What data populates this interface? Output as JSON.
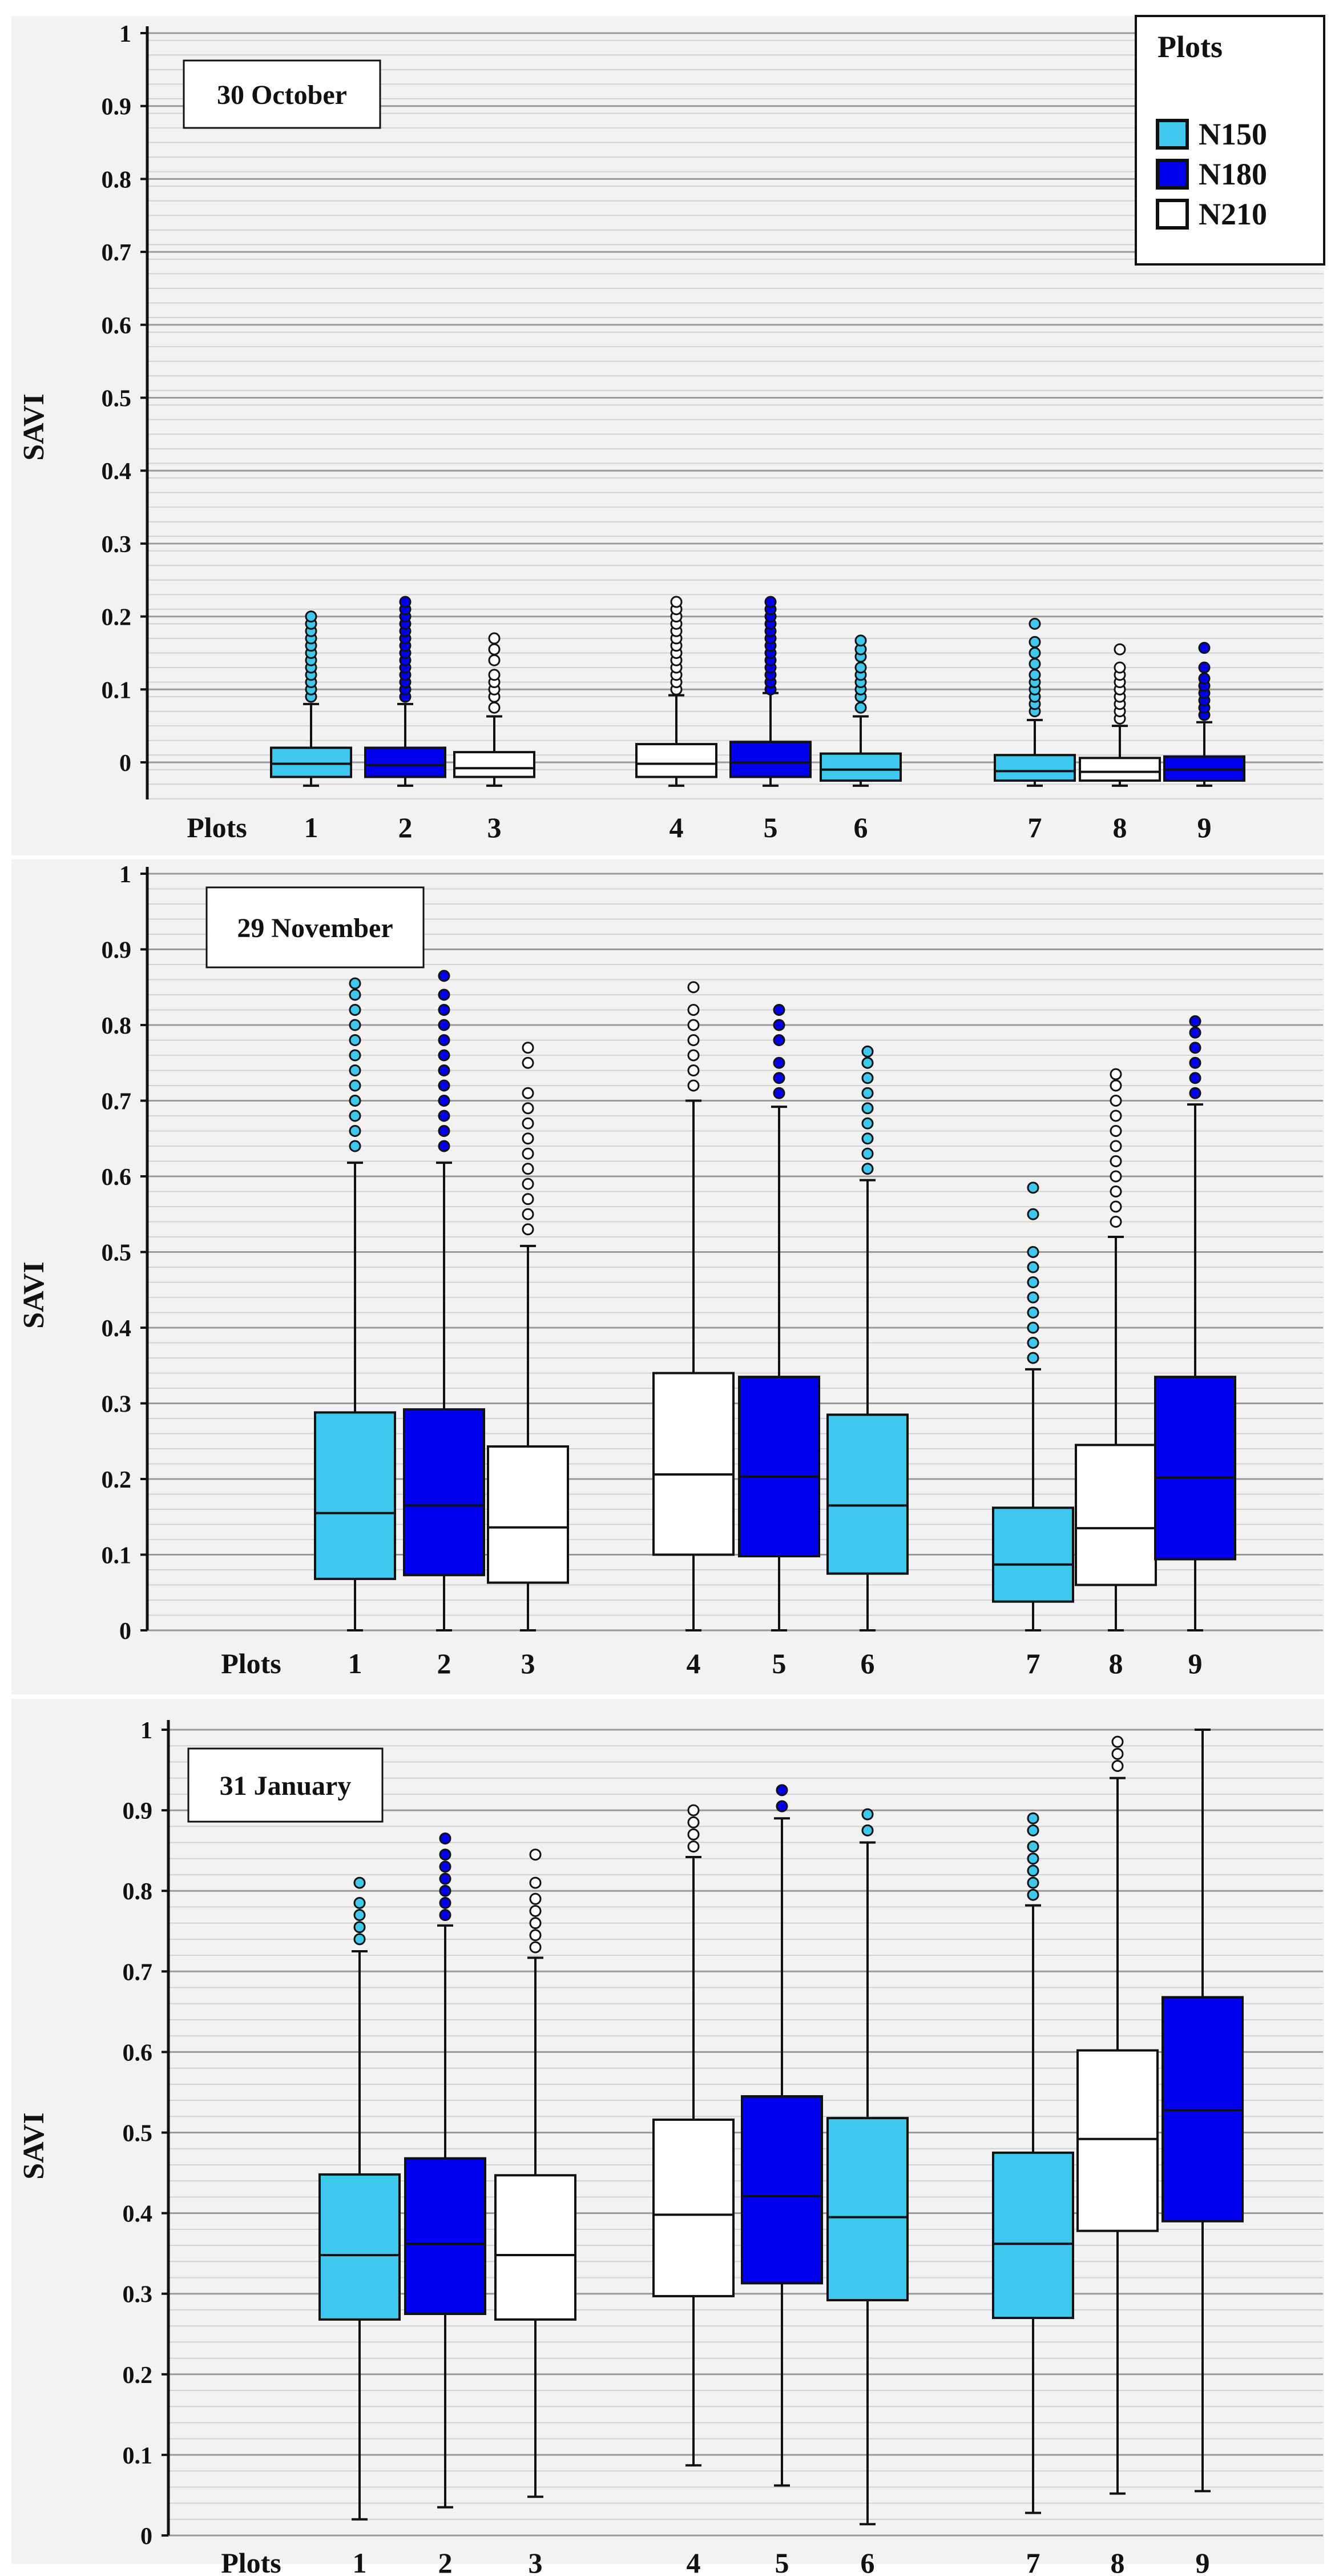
{
  "colors": {
    "N150": "#3EC8EE",
    "N180": "#0000EE",
    "N210": "#FFFFFF",
    "panel_bg": "#F2F2F2",
    "grid_major": "#9A9A9A",
    "grid_minor": "#D2D2D2",
    "outline": "#111111"
  },
  "legend": {
    "title": "Plots",
    "items": [
      {
        "label": "N150",
        "color": "#3EC8EE"
      },
      {
        "label": "N180",
        "color": "#0000EE"
      },
      {
        "label": "N210",
        "color": "#FFFFFF"
      }
    ]
  },
  "chart_data": [
    {
      "type": "boxplot",
      "title": "30 October",
      "ylabel": "SAVI",
      "xlabel": "Plots",
      "ylim": [
        -0.05,
        1.0
      ],
      "yticks": [
        0,
        0.1,
        0.2,
        0.3,
        0.4,
        0.5,
        0.6,
        0.7,
        0.8,
        0.9,
        1
      ],
      "ytick_labels": [
        "0",
        "0.1",
        "0.2",
        "0.3",
        "0.4",
        "0.5",
        "0.6",
        "0.7",
        "0.8",
        "0.9",
        "1"
      ],
      "categories": [
        "1",
        "2",
        "3",
        "4",
        "5",
        "6",
        "7",
        "8",
        "9"
      ],
      "groups": [
        "N150",
        "N180",
        "N210",
        "N210",
        "N180",
        "N150",
        "N150",
        "N210",
        "N180"
      ],
      "boxes": [
        {
          "lower_whisker": -0.032,
          "q1": -0.02,
          "median": -0.002,
          "q3": 0.02,
          "upper_whisker": 0.08,
          "outliers": [
            0.09,
            0.1,
            0.11,
            0.12,
            0.13,
            0.14,
            0.15,
            0.16,
            0.17,
            0.18,
            0.19,
            0.2
          ]
        },
        {
          "lower_whisker": -0.032,
          "q1": -0.02,
          "median": -0.004,
          "q3": 0.02,
          "upper_whisker": 0.08,
          "outliers": [
            0.09,
            0.1,
            0.11,
            0.12,
            0.13,
            0.14,
            0.15,
            0.16,
            0.17,
            0.18,
            0.19,
            0.2,
            0.21,
            0.22
          ]
        },
        {
          "lower_whisker": -0.032,
          "q1": -0.02,
          "median": -0.008,
          "q3": 0.014,
          "upper_whisker": 0.063,
          "outliers": [
            0.075,
            0.09,
            0.1,
            0.11,
            0.12,
            0.14,
            0.155,
            0.17
          ]
        },
        {
          "lower_whisker": -0.032,
          "q1": -0.02,
          "median": -0.002,
          "q3": 0.025,
          "upper_whisker": 0.092,
          "outliers": [
            0.1,
            0.11,
            0.12,
            0.13,
            0.14,
            0.15,
            0.16,
            0.17,
            0.18,
            0.19,
            0.2,
            0.21,
            0.22
          ]
        },
        {
          "lower_whisker": -0.032,
          "q1": -0.02,
          "median": 0.0,
          "q3": 0.028,
          "upper_whisker": 0.095,
          "outliers": [
            0.1,
            0.11,
            0.12,
            0.13,
            0.14,
            0.15,
            0.16,
            0.17,
            0.18,
            0.19,
            0.2,
            0.21,
            0.22
          ]
        },
        {
          "lower_whisker": -0.032,
          "q1": -0.025,
          "median": -0.01,
          "q3": 0.012,
          "upper_whisker": 0.063,
          "outliers": [
            0.075,
            0.09,
            0.1,
            0.11,
            0.12,
            0.13,
            0.145,
            0.155,
            0.167
          ]
        },
        {
          "lower_whisker": -0.032,
          "q1": -0.025,
          "median": -0.012,
          "q3": 0.01,
          "upper_whisker": 0.058,
          "outliers": [
            0.07,
            0.08,
            0.09,
            0.1,
            0.11,
            0.12,
            0.135,
            0.15,
            0.165,
            0.19
          ]
        },
        {
          "lower_whisker": -0.032,
          "q1": -0.025,
          "median": -0.013,
          "q3": 0.006,
          "upper_whisker": 0.05,
          "outliers": [
            0.06,
            0.07,
            0.08,
            0.09,
            0.1,
            0.11,
            0.12,
            0.13,
            0.155
          ]
        },
        {
          "lower_whisker": -0.032,
          "q1": -0.025,
          "median": -0.01,
          "q3": 0.008,
          "upper_whisker": 0.055,
          "outliers": [
            0.065,
            0.075,
            0.085,
            0.095,
            0.105,
            0.115,
            0.13,
            0.157
          ]
        }
      ]
    },
    {
      "type": "boxplot",
      "title": "29 November",
      "ylabel": "SAVI",
      "xlabel": "Plots",
      "ylim": [
        0,
        1.0
      ],
      "yticks": [
        0,
        0.1,
        0.2,
        0.3,
        0.4,
        0.5,
        0.6,
        0.7,
        0.8,
        0.9,
        1
      ],
      "ytick_labels": [
        "0",
        "0.1",
        "0.2",
        "0.3",
        "0.4",
        "0.5",
        "0.6",
        "0.7",
        "0.8",
        "0.9",
        "1"
      ],
      "categories": [
        "1",
        "2",
        "3",
        "4",
        "5",
        "6",
        "7",
        "8",
        "9"
      ],
      "groups": [
        "N150",
        "N180",
        "N210",
        "N210",
        "N180",
        "N150",
        "N150",
        "N210",
        "N180"
      ],
      "boxes": [
        {
          "lower_whisker": 0.0,
          "q1": 0.068,
          "median": 0.155,
          "q3": 0.288,
          "upper_whisker": 0.618,
          "outliers": [
            0.64,
            0.66,
            0.68,
            0.7,
            0.72,
            0.74,
            0.76,
            0.78,
            0.8,
            0.82,
            0.84,
            0.855
          ]
        },
        {
          "lower_whisker": 0.0,
          "q1": 0.073,
          "median": 0.165,
          "q3": 0.292,
          "upper_whisker": 0.618,
          "outliers": [
            0.64,
            0.66,
            0.68,
            0.7,
            0.72,
            0.74,
            0.76,
            0.78,
            0.8,
            0.82,
            0.84,
            0.865
          ]
        },
        {
          "lower_whisker": 0.0,
          "q1": 0.063,
          "median": 0.136,
          "q3": 0.243,
          "upper_whisker": 0.508,
          "outliers": [
            0.53,
            0.55,
            0.57,
            0.59,
            0.61,
            0.63,
            0.65,
            0.67,
            0.69,
            0.71,
            0.75,
            0.77
          ]
        },
        {
          "lower_whisker": 0.0,
          "q1": 0.1,
          "median": 0.206,
          "q3": 0.34,
          "upper_whisker": 0.7,
          "outliers": [
            0.72,
            0.74,
            0.76,
            0.78,
            0.8,
            0.82,
            0.85
          ]
        },
        {
          "lower_whisker": 0.0,
          "q1": 0.098,
          "median": 0.203,
          "q3": 0.335,
          "upper_whisker": 0.692,
          "outliers": [
            0.71,
            0.73,
            0.75,
            0.78,
            0.8,
            0.82
          ]
        },
        {
          "lower_whisker": 0.0,
          "q1": 0.075,
          "median": 0.165,
          "q3": 0.285,
          "upper_whisker": 0.595,
          "outliers": [
            0.61,
            0.63,
            0.65,
            0.67,
            0.69,
            0.71,
            0.73,
            0.75,
            0.765
          ]
        },
        {
          "lower_whisker": 0.0,
          "q1": 0.038,
          "median": 0.087,
          "q3": 0.162,
          "upper_whisker": 0.345,
          "outliers": [
            0.36,
            0.38,
            0.4,
            0.42,
            0.44,
            0.46,
            0.48,
            0.5,
            0.55,
            0.585
          ]
        },
        {
          "lower_whisker": 0.0,
          "q1": 0.06,
          "median": 0.135,
          "q3": 0.245,
          "upper_whisker": 0.52,
          "outliers": [
            0.54,
            0.56,
            0.58,
            0.6,
            0.62,
            0.64,
            0.66,
            0.68,
            0.7,
            0.72,
            0.735
          ]
        },
        {
          "lower_whisker": 0.0,
          "q1": 0.094,
          "median": 0.202,
          "q3": 0.335,
          "upper_whisker": 0.695,
          "outliers": [
            0.71,
            0.73,
            0.75,
            0.77,
            0.79,
            0.805
          ]
        }
      ]
    },
    {
      "type": "boxplot",
      "title": "31 January",
      "ylabel": "SAVI",
      "xlabel": "Plots",
      "ylim": [
        0,
        1.0
      ],
      "yticks": [
        0,
        0.1,
        0.2,
        0.3,
        0.4,
        0.5,
        0.6,
        0.7,
        0.8,
        0.9,
        1
      ],
      "ytick_labels": [
        "0",
        "0.1",
        "0.2",
        "0.3",
        "0.4",
        "0.5",
        "0.6",
        "0.7",
        "0.8",
        "0.9",
        "1"
      ],
      "categories": [
        "1",
        "2",
        "3",
        "4",
        "5",
        "6",
        "7",
        "8",
        "9"
      ],
      "groups": [
        "N150",
        "N180",
        "N210",
        "N210",
        "N180",
        "N150",
        "N150",
        "N210",
        "N180"
      ],
      "boxes": [
        {
          "lower_whisker": 0.02,
          "q1": 0.268,
          "median": 0.348,
          "q3": 0.448,
          "upper_whisker": 0.725,
          "outliers": [
            0.74,
            0.755,
            0.77,
            0.785,
            0.81
          ]
        },
        {
          "lower_whisker": 0.035,
          "q1": 0.275,
          "median": 0.362,
          "q3": 0.468,
          "upper_whisker": 0.757,
          "outliers": [
            0.77,
            0.785,
            0.8,
            0.815,
            0.83,
            0.845,
            0.865
          ]
        },
        {
          "lower_whisker": 0.048,
          "q1": 0.268,
          "median": 0.348,
          "q3": 0.447,
          "upper_whisker": 0.717,
          "outliers": [
            0.73,
            0.745,
            0.76,
            0.775,
            0.79,
            0.81,
            0.845
          ]
        },
        {
          "lower_whisker": 0.087,
          "q1": 0.297,
          "median": 0.398,
          "q3": 0.516,
          "upper_whisker": 0.842,
          "outliers": [
            0.855,
            0.87,
            0.885,
            0.9
          ]
        },
        {
          "lower_whisker": 0.062,
          "q1": 0.313,
          "median": 0.421,
          "q3": 0.545,
          "upper_whisker": 0.89,
          "outliers": [
            0.905,
            0.925
          ]
        },
        {
          "lower_whisker": 0.014,
          "q1": 0.292,
          "median": 0.395,
          "q3": 0.518,
          "upper_whisker": 0.86,
          "outliers": [
            0.875,
            0.895
          ]
        },
        {
          "lower_whisker": 0.028,
          "q1": 0.27,
          "median": 0.362,
          "q3": 0.475,
          "upper_whisker": 0.782,
          "outliers": [
            0.795,
            0.81,
            0.825,
            0.84,
            0.855,
            0.875,
            0.89
          ]
        },
        {
          "lower_whisker": 0.052,
          "q1": 0.378,
          "median": 0.492,
          "q3": 0.602,
          "upper_whisker": 0.94,
          "outliers": [
            0.955,
            0.97,
            0.985
          ]
        },
        {
          "lower_whisker": 0.055,
          "q1": 0.39,
          "median": 0.528,
          "q3": 0.668,
          "upper_whisker": 1.0,
          "outliers": []
        }
      ]
    }
  ]
}
